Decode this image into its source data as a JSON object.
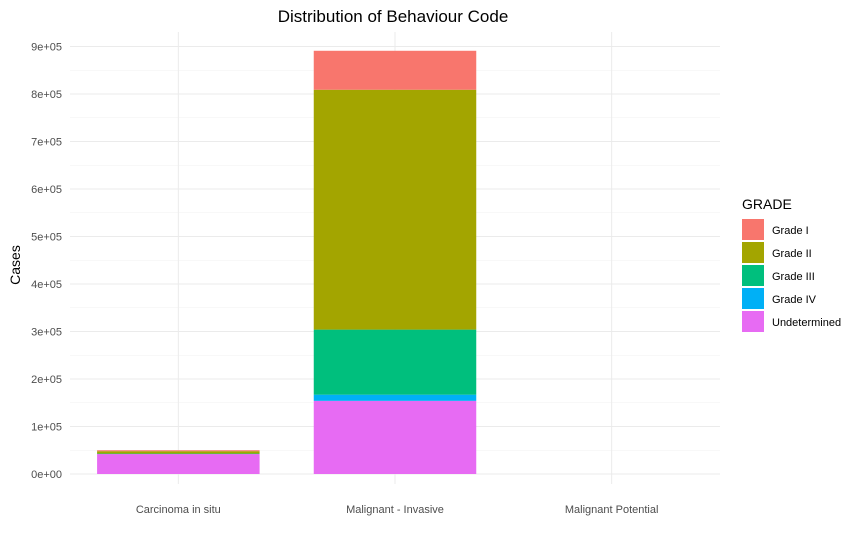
{
  "chart_data": {
    "type": "bar",
    "stacked": true,
    "title": "Distribution of Behaviour Code",
    "xlabel": "",
    "ylabel": "Cases",
    "categories": [
      "Carcinoma in situ",
      "Malignant - Invasive",
      "Malignant Potential"
    ],
    "ylim": [
      0,
      900000
    ],
    "yticks": [
      0,
      100000,
      200000,
      300000,
      400000,
      500000,
      600000,
      700000,
      800000,
      900000
    ],
    "ytick_labels": [
      "0e+00",
      "1e+05",
      "2e+05",
      "3e+05",
      "4e+05",
      "5e+05",
      "6e+05",
      "7e+05",
      "8e+05",
      "9e+05"
    ],
    "grid": true,
    "legend_title": "GRADE",
    "legend_position": "right",
    "series": [
      {
        "name": "Grade I",
        "color": "#F8766D",
        "values": [
          2000,
          82000,
          0
        ]
      },
      {
        "name": "Grade II",
        "color": "#A3A500",
        "values": [
          5000,
          505000,
          0
        ]
      },
      {
        "name": "Grade III",
        "color": "#00BF7D",
        "values": [
          1000,
          137000,
          0
        ]
      },
      {
        "name": "Grade IV",
        "color": "#00B0F6",
        "values": [
          0,
          13000,
          0
        ]
      },
      {
        "name": "Undetermined",
        "color": "#E76BF3",
        "values": [
          42000,
          154000,
          0
        ]
      }
    ]
  }
}
